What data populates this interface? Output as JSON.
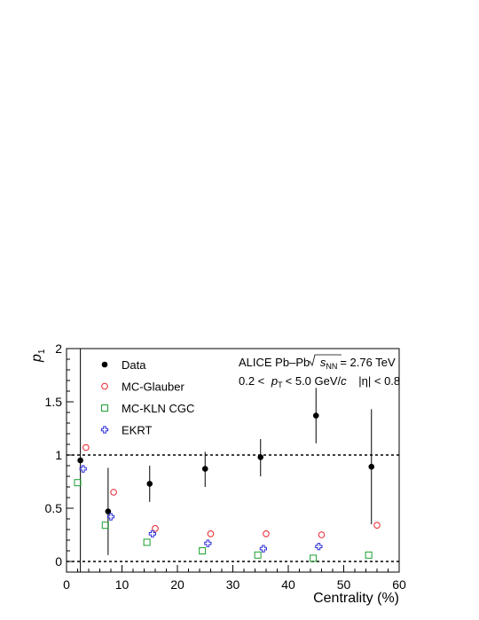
{
  "chart_data": {
    "type": "scatter",
    "xlabel": "Centrality (%)",
    "ylabel": "p",
    "ylabel_sub": "1",
    "xlim": [
      0,
      60
    ],
    "ylim": [
      -0.1,
      2.0
    ],
    "x_ticks": [
      0,
      10,
      20,
      30,
      40,
      50,
      60
    ],
    "y_ticks": [
      0,
      0.5,
      1,
      1.5,
      2
    ],
    "x_tick_labels": [
      "0",
      "10",
      "20",
      "30",
      "40",
      "50",
      "60"
    ],
    "y_tick_labels": [
      "0",
      "0.5",
      "1",
      "1.5",
      "2"
    ],
    "reference_lines": [
      0,
      1
    ],
    "vertical_line_x": 2.5,
    "legend_position": "top-left",
    "annotation": {
      "line1_a": "ALICE Pb–Pb",
      "line1_sqrt_s": "s",
      "line1_sub": "NN",
      "line1_b": "= 2.76 TeV",
      "line2_a": "0.2 <",
      "line2_p": "p",
      "line2_psub": "T",
      "line2_b": "< 5.0 GeV/",
      "line2_c": "c",
      "line2_eta": "|η| < 0.8"
    },
    "series": [
      {
        "name": "Data",
        "marker": "filled-circle",
        "color": "#000000",
        "points": [
          {
            "x": 2.5,
            "y": 0.95,
            "ylo": 0.95,
            "yhi": 0.95
          },
          {
            "x": 7.5,
            "y": 0.47,
            "ylo": 0.06,
            "yhi": 0.88
          },
          {
            "x": 15,
            "y": 0.73,
            "ylo": 0.56,
            "yhi": 0.9
          },
          {
            "x": 25,
            "y": 0.87,
            "ylo": 0.7,
            "yhi": 1.03
          },
          {
            "x": 35,
            "y": 0.98,
            "ylo": 0.8,
            "yhi": 1.15
          },
          {
            "x": 45,
            "y": 1.37,
            "ylo": 1.11,
            "yhi": 1.63
          },
          {
            "x": 55,
            "y": 0.89,
            "ylo": 0.35,
            "yhi": 1.43
          }
        ]
      },
      {
        "name": "MC-Glauber",
        "marker": "open-circle",
        "color": "#e8202a",
        "points": [
          {
            "x": 3.5,
            "y": 1.07
          },
          {
            "x": 8.5,
            "y": 0.65
          },
          {
            "x": 16,
            "y": 0.31
          },
          {
            "x": 26,
            "y": 0.26
          },
          {
            "x": 36,
            "y": 0.26
          },
          {
            "x": 46,
            "y": 0.25
          },
          {
            "x": 56,
            "y": 0.34
          }
        ]
      },
      {
        "name": "MC-KLN CGC",
        "marker": "open-square",
        "color": "#1a9e2e",
        "points": [
          {
            "x": 2.0,
            "y": 0.74
          },
          {
            "x": 7.0,
            "y": 0.34
          },
          {
            "x": 14.5,
            "y": 0.18
          },
          {
            "x": 24.5,
            "y": 0.1
          },
          {
            "x": 34.5,
            "y": 0.06
          },
          {
            "x": 44.5,
            "y": 0.03
          },
          {
            "x": 54.5,
            "y": 0.06
          }
        ]
      },
      {
        "name": "EKRT",
        "marker": "open-cross",
        "color": "#2a2ad8",
        "points": [
          {
            "x": 3.0,
            "y": 0.87
          },
          {
            "x": 8.0,
            "y": 0.42
          },
          {
            "x": 15.5,
            "y": 0.26
          },
          {
            "x": 25.5,
            "y": 0.17
          },
          {
            "x": 35.5,
            "y": 0.12
          },
          {
            "x": 45.5,
            "y": 0.14
          }
        ]
      }
    ]
  }
}
